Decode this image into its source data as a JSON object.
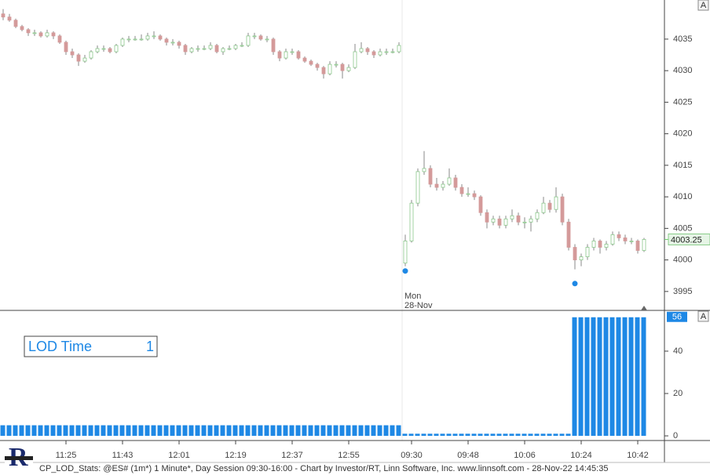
{
  "chart_data": [
    {
      "type": "candlestick",
      "ohlc": [
        [
          4039,
          4039.75,
          4038,
          4038.5
        ],
        [
          4038.5,
          4039,
          4037.75,
          4038
        ],
        [
          4038,
          4038.25,
          4036.75,
          4037
        ],
        [
          4037,
          4037.25,
          4036.25,
          4036.5
        ],
        [
          4036.5,
          4036.75,
          4035.5,
          4036
        ],
        [
          4036,
          4036.5,
          4035.5,
          4036
        ],
        [
          4036,
          4036.25,
          4035.25,
          4035.5
        ],
        [
          4035.5,
          4036.5,
          4035.25,
          4036
        ],
        [
          4036,
          4036.25,
          4035,
          4035.5
        ],
        [
          4035.5,
          4035.75,
          4034.25,
          4034.5
        ],
        [
          4034.5,
          4034.75,
          4032.5,
          4033
        ],
        [
          4033,
          4033.5,
          4032,
          4032.5
        ],
        [
          4032.5,
          4032.75,
          4030.75,
          4031.5
        ],
        [
          4031.5,
          4032.5,
          4031.25,
          4032
        ],
        [
          4032,
          4033.25,
          4031.75,
          4033
        ],
        [
          4033,
          4034,
          4032.75,
          4033.5
        ],
        [
          4033.5,
          4034,
          4033,
          4033.5
        ],
        [
          4033.5,
          4033.75,
          4032.75,
          4033
        ],
        [
          4033,
          4034.25,
          4032.75,
          4034
        ],
        [
          4034,
          4035.25,
          4033.75,
          4035
        ],
        [
          4035,
          4035.5,
          4034.5,
          4035
        ],
        [
          4035,
          4035.5,
          4034.75,
          4035
        ],
        [
          4035,
          4035.75,
          4034.75,
          4035
        ],
        [
          4035,
          4036,
          4034.75,
          4035.5
        ],
        [
          4035.5,
          4036.25,
          4035,
          4035.5
        ],
        [
          4035.5,
          4035.75,
          4034.75,
          4035
        ],
        [
          4035,
          4035.25,
          4034,
          4034.5
        ],
        [
          4034.5,
          4035,
          4034,
          4034.5
        ],
        [
          4034.5,
          4034.75,
          4033.5,
          4034
        ],
        [
          4034,
          4034.25,
          4032.5,
          4033
        ],
        [
          4033,
          4033.75,
          4032.75,
          4033.5
        ],
        [
          4033.5,
          4034,
          4033,
          4033.5
        ],
        [
          4033.5,
          4034,
          4033.25,
          4033.5
        ],
        [
          4033.5,
          4034.5,
          4033.25,
          4034
        ],
        [
          4034,
          4034.25,
          4032.75,
          4033
        ],
        [
          4033,
          4033.75,
          4032.5,
          4033.5
        ],
        [
          4033.5,
          4034,
          4033.25,
          4033.5
        ],
        [
          4033.5,
          4034.25,
          4033.25,
          4034
        ],
        [
          4034,
          4034.5,
          4033.75,
          4034
        ],
        [
          4034,
          4036,
          4033.75,
          4035.5
        ],
        [
          4035.5,
          4036,
          4035,
          4035.5
        ],
        [
          4035.5,
          4035.75,
          4034.75,
          4035
        ],
        [
          4035,
          4035.5,
          4034.5,
          4035
        ],
        [
          4035,
          4035.25,
          4032.5,
          4033
        ],
        [
          4033,
          4033.25,
          4031.5,
          4032
        ],
        [
          4032,
          4033.5,
          4031.75,
          4033
        ],
        [
          4033,
          4033.5,
          4032.5,
          4033
        ],
        [
          4033,
          4033.25,
          4031.75,
          4032
        ],
        [
          4032,
          4032.25,
          4031.25,
          4031.5
        ],
        [
          4031.5,
          4031.75,
          4030.75,
          4031
        ],
        [
          4031,
          4031.25,
          4030,
          4030.5
        ],
        [
          4030.5,
          4030.75,
          4028.75,
          4029.5
        ],
        [
          4029.5,
          4031.5,
          4029.25,
          4031
        ],
        [
          4031,
          4031.5,
          4030.5,
          4031
        ],
        [
          4031,
          4031.25,
          4028.75,
          4030
        ],
        [
          4030,
          4031,
          4029.75,
          4030.5
        ],
        [
          4030.5,
          4034.25,
          4030.25,
          4033
        ],
        [
          4033,
          4034.5,
          4032.75,
          4033.5
        ],
        [
          4033.5,
          4033.75,
          4032.5,
          4033
        ],
        [
          4033,
          4033.25,
          4032,
          4032.5
        ],
        [
          4032.5,
          4033.5,
          4032.25,
          4033
        ],
        [
          4033,
          4033.5,
          4032.5,
          4033
        ],
        [
          4033,
          4033.5,
          4032.75,
          4033
        ],
        [
          4033,
          4034.5,
          4032.75,
          4034
        ],
        [
          3999.5,
          4004,
          3999,
          4003
        ],
        [
          4003,
          4009.5,
          4002.75,
          4009
        ],
        [
          4009,
          4014.5,
          4008.5,
          4014
        ],
        [
          4014,
          4017.25,
          4013.5,
          4014.5
        ],
        [
          4014.5,
          4015,
          4011.5,
          4012
        ],
        [
          4012,
          4013,
          4011,
          4011.5
        ],
        [
          4011.5,
          4012.5,
          4011,
          4012
        ],
        [
          4012,
          4014.5,
          4011.75,
          4013
        ],
        [
          4013,
          4013.5,
          4011,
          4011.5
        ],
        [
          4011.5,
          4012,
          4010,
          4010.5
        ],
        [
          4010.5,
          4011.5,
          4010,
          4010.5
        ],
        [
          4010.5,
          4011,
          4009.5,
          4010
        ],
        [
          4010,
          4010.25,
          4007,
          4007.5
        ],
        [
          4007.5,
          4008,
          4005,
          4006
        ],
        [
          4006,
          4007,
          4005.5,
          4006.5
        ],
        [
          4006.5,
          4007,
          4005,
          4005.5
        ],
        [
          4005.5,
          4007,
          4005,
          4006.5
        ],
        [
          4006.5,
          4008,
          4006,
          4007
        ],
        [
          4007,
          4007.5,
          4005.5,
          4006
        ],
        [
          4006,
          4006.75,
          4005,
          4006
        ],
        [
          4006,
          4007,
          4004.5,
          4006.5
        ],
        [
          4006.5,
          4008,
          4006,
          4007.5
        ],
        [
          4007.5,
          4010,
          4007.25,
          4009
        ],
        [
          4009,
          4009.5,
          4007.5,
          4008
        ],
        [
          4008,
          4011.5,
          4007.5,
          4010
        ],
        [
          4010,
          4010.5,
          4005.5,
          4006
        ],
        [
          4006,
          4006.5,
          4001.5,
          4002
        ],
        [
          4002,
          4002.5,
          3998.5,
          4000
        ],
        [
          4000,
          4001,
          3999,
          4000.5
        ],
        [
          4000.5,
          4002.5,
          4000,
          4002
        ],
        [
          4002,
          4003.5,
          4001.5,
          4003
        ],
        [
          4003,
          4003.25,
          4001,
          4002
        ],
        [
          4002,
          4003,
          4001.5,
          4002.5
        ],
        [
          4002.5,
          4004.5,
          4002.25,
          4004
        ],
        [
          4004,
          4004.5,
          4003,
          4003.5
        ],
        [
          4003.5,
          4004,
          4002.5,
          4003
        ],
        [
          4003,
          4003.5,
          4002.5,
          4003
        ],
        [
          4003,
          4003.25,
          4001,
          4001.5
        ],
        [
          4001.5,
          4003.5,
          4001.25,
          4003.25
        ]
      ],
      "ylim": [
        3992,
        4041.2
      ],
      "yticks": [
        3995,
        4000,
        4005,
        4010,
        4015,
        4020,
        4025,
        4030,
        4035
      ],
      "last_price": 4003.25,
      "session_label": [
        "Mon",
        "28-Nov"
      ],
      "lod_markers": [
        {
          "index": 64,
          "value": 3998.25
        },
        {
          "index": 91,
          "value": 3996.25
        }
      ],
      "up_color": "#8cc88c",
      "down_color": "#d49a9a",
      "marker_color": "#1e88e5",
      "button": "A"
    },
    {
      "type": "bar",
      "values": [
        5,
        5,
        5,
        5,
        5,
        5,
        5,
        5,
        5,
        5,
        5,
        5,
        5,
        5,
        5,
        5,
        5,
        5,
        5,
        5,
        5,
        5,
        5,
        5,
        5,
        5,
        5,
        5,
        5,
        5,
        5,
        5,
        5,
        5,
        5,
        5,
        5,
        5,
        5,
        5,
        5,
        5,
        5,
        5,
        5,
        5,
        5,
        5,
        5,
        5,
        5,
        5,
        5,
        5,
        5,
        5,
        5,
        5,
        5,
        5,
        5,
        5,
        5,
        5,
        1,
        1,
        1,
        1,
        1,
        1,
        1,
        1,
        1,
        1,
        1,
        1,
        1,
        1,
        1,
        1,
        1,
        1,
        1,
        1,
        1,
        1,
        1,
        1,
        1,
        1,
        1,
        56,
        56,
        56,
        56,
        56,
        56,
        56,
        56,
        56,
        56,
        56,
        56
      ],
      "ylim": [
        -2.2,
        58.5
      ],
      "yticks": [
        0,
        20,
        40
      ],
      "last_value": 56,
      "color": "#1e88e5",
      "indicator_box": {
        "label": "LOD Time",
        "value": 1
      },
      "button": "A"
    }
  ],
  "x_axis": {
    "xticks": [
      {
        "value": 10,
        "label": "11:25"
      },
      {
        "value": 19,
        "label": "11:43"
      },
      {
        "value": 28,
        "label": "12:01"
      },
      {
        "value": 37,
        "label": "12:19"
      },
      {
        "value": 46,
        "label": "12:37"
      },
      {
        "value": 55,
        "label": "12:55"
      },
      {
        "value": 65,
        "label": "09:30"
      },
      {
        "value": 74,
        "label": "09:48"
      },
      {
        "value": 83,
        "label": "10:06"
      },
      {
        "value": 92,
        "label": "10:24"
      },
      {
        "value": 101,
        "label": "10:42"
      }
    ]
  },
  "footer": "CP_LOD_Stats: @ES# (1m*) 1 Minute*, Day Session 09:30-16:00 - Chart by Investor/RT, Linn Software, Inc. www.linnsoft.com - 28-Nov-22 14:45:35"
}
